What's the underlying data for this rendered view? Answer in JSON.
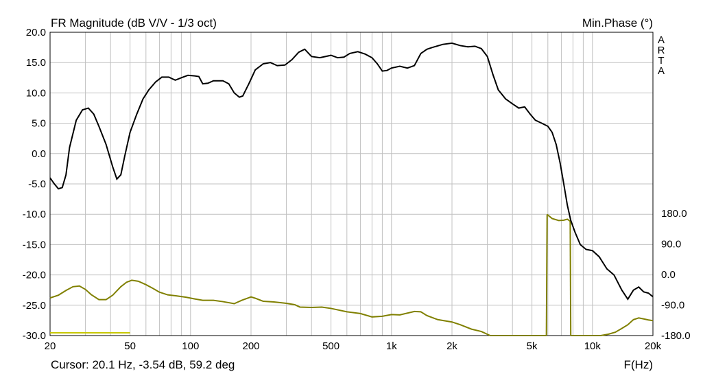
{
  "chart_data": {
    "type": "line",
    "title": "FR Magnitude (dB V/V - 1/3 oct)",
    "right_axis_title": "Min.Phase (°)",
    "watermark": "ARTA",
    "xlabel": "F(Hz)",
    "x_scale": "log",
    "xlim": [
      20,
      20000
    ],
    "ylim": [
      -30,
      20
    ],
    "y2lim": [
      -180,
      180
    ],
    "grid": true,
    "x_ticks": [
      {
        "v": 20,
        "label": "20"
      },
      {
        "v": 50,
        "label": "50"
      },
      {
        "v": 100,
        "label": "100"
      },
      {
        "v": 200,
        "label": "200"
      },
      {
        "v": 500,
        "label": "500"
      },
      {
        "v": 1000,
        "label": "1k"
      },
      {
        "v": 2000,
        "label": "2k"
      },
      {
        "v": 5000,
        "label": "5k"
      },
      {
        "v": 10000,
        "label": "10k"
      },
      {
        "v": 20000,
        "label": "20k"
      }
    ],
    "y_ticks": [
      {
        "v": 20,
        "label": "20.0"
      },
      {
        "v": 15,
        "label": "15.0"
      },
      {
        "v": 10,
        "label": "10.0"
      },
      {
        "v": 5,
        "label": "5.0"
      },
      {
        "v": 0,
        "label": "0.0"
      },
      {
        "v": -5,
        "label": "-5.0"
      },
      {
        "v": -10,
        "label": "-10.0"
      },
      {
        "v": -15,
        "label": "-15.0"
      },
      {
        "v": -20,
        "label": "-20.0"
      },
      {
        "v": -25,
        "label": "-25.0"
      },
      {
        "v": -30,
        "label": "-30.0"
      }
    ],
    "y2_ticks": [
      {
        "v": 180,
        "label": "180.0"
      },
      {
        "v": 90,
        "label": "90.0"
      },
      {
        "v": 0,
        "label": "0.0"
      },
      {
        "v": -90,
        "label": "-90.0"
      },
      {
        "v": -180,
        "label": "-180.0"
      }
    ],
    "colors": {
      "magnitude": "#000000",
      "phase": "#808000",
      "marker": "#c8c800",
      "grid": "#c0c0c0"
    },
    "magnitude": [
      [
        20,
        -4
      ],
      [
        21,
        -5
      ],
      [
        22,
        -5.8
      ],
      [
        23,
        -5.6
      ],
      [
        24,
        -3.5
      ],
      [
        25,
        1
      ],
      [
        27,
        5.5
      ],
      [
        29,
        7.2
      ],
      [
        31,
        7.5
      ],
      [
        33,
        6.5
      ],
      [
        35,
        4.5
      ],
      [
        38,
        1.5
      ],
      [
        41,
        -2.2
      ],
      [
        43,
        -4.2
      ],
      [
        45,
        -3.5
      ],
      [
        47,
        -0.5
      ],
      [
        50,
        3.5
      ],
      [
        54,
        6.5
      ],
      [
        58,
        9
      ],
      [
        62,
        10.5
      ],
      [
        67,
        11.8
      ],
      [
        72,
        12.6
      ],
      [
        78,
        12.6
      ],
      [
        84,
        12.1
      ],
      [
        90,
        12.5
      ],
      [
        97,
        12.9
      ],
      [
        105,
        12.8
      ],
      [
        110,
        12.7
      ],
      [
        115,
        11.5
      ],
      [
        122,
        11.6
      ],
      [
        130,
        12
      ],
      [
        145,
        12
      ],
      [
        155,
        11.5
      ],
      [
        165,
        10
      ],
      [
        175,
        9.3
      ],
      [
        182,
        9.5
      ],
      [
        195,
        11.5
      ],
      [
        210,
        13.8
      ],
      [
        230,
        14.8
      ],
      [
        250,
        15
      ],
      [
        270,
        14.5
      ],
      [
        295,
        14.6
      ],
      [
        320,
        15.5
      ],
      [
        345,
        16.7
      ],
      [
        370,
        17.2
      ],
      [
        400,
        16
      ],
      [
        440,
        15.8
      ],
      [
        500,
        16.2
      ],
      [
        540,
        15.8
      ],
      [
        580,
        15.9
      ],
      [
        620,
        16.5
      ],
      [
        680,
        16.8
      ],
      [
        740,
        16.4
      ],
      [
        800,
        15.8
      ],
      [
        850,
        14.8
      ],
      [
        900,
        13.6
      ],
      [
        950,
        13.7
      ],
      [
        1000,
        14.1
      ],
      [
        1100,
        14.4
      ],
      [
        1200,
        14.1
      ],
      [
        1300,
        14.5
      ],
      [
        1400,
        16.5
      ],
      [
        1500,
        17.2
      ],
      [
        1600,
        17.5
      ],
      [
        1800,
        18
      ],
      [
        2000,
        18.2
      ],
      [
        2200,
        17.8
      ],
      [
        2400,
        17.6
      ],
      [
        2600,
        17.7
      ],
      [
        2800,
        17.3
      ],
      [
        3000,
        16
      ],
      [
        3200,
        13
      ],
      [
        3400,
        10.5
      ],
      [
        3700,
        9
      ],
      [
        4000,
        8.2
      ],
      [
        4300,
        7.5
      ],
      [
        4600,
        7.7
      ],
      [
        4900,
        6.5
      ],
      [
        5200,
        5.5
      ],
      [
        5600,
        5
      ],
      [
        6000,
        4.5
      ],
      [
        6300,
        3.5
      ],
      [
        6600,
        1.5
      ],
      [
        6900,
        -1.5
      ],
      [
        7200,
        -5
      ],
      [
        7500,
        -8.5
      ],
      [
        7800,
        -11
      ],
      [
        8200,
        -13
      ],
      [
        8700,
        -15
      ],
      [
        9300,
        -15.8
      ],
      [
        10000,
        -16
      ],
      [
        10800,
        -17
      ],
      [
        11800,
        -19
      ],
      [
        12800,
        -20
      ],
      [
        14000,
        -22.5
      ],
      [
        15000,
        -24
      ],
      [
        16000,
        -22.5
      ],
      [
        17000,
        -22
      ],
      [
        18000,
        -22.8
      ],
      [
        19000,
        -23
      ],
      [
        20000,
        -23.6
      ]
    ],
    "phase": [
      [
        20,
        -69
      ],
      [
        22,
        -61
      ],
      [
        24,
        -47
      ],
      [
        26,
        -36
      ],
      [
        28,
        -34
      ],
      [
        30,
        -44
      ],
      [
        32,
        -59
      ],
      [
        35,
        -74
      ],
      [
        38,
        -74
      ],
      [
        41,
        -61
      ],
      [
        45,
        -36
      ],
      [
        48,
        -23
      ],
      [
        51,
        -17
      ],
      [
        55,
        -20
      ],
      [
        60,
        -30
      ],
      [
        65,
        -41
      ],
      [
        70,
        -52
      ],
      [
        77,
        -60
      ],
      [
        85,
        -63
      ],
      [
        95,
        -67
      ],
      [
        105,
        -72
      ],
      [
        115,
        -76
      ],
      [
        130,
        -76
      ],
      [
        145,
        -80
      ],
      [
        165,
        -86
      ],
      [
        180,
        -76
      ],
      [
        200,
        -66
      ],
      [
        210,
        -70
      ],
      [
        230,
        -79
      ],
      [
        260,
        -81
      ],
      [
        300,
        -85
      ],
      [
        330,
        -89
      ],
      [
        350,
        -96
      ],
      [
        400,
        -97
      ],
      [
        450,
        -96
      ],
      [
        500,
        -100
      ],
      [
        600,
        -110
      ],
      [
        700,
        -115
      ],
      [
        800,
        -125
      ],
      [
        900,
        -123
      ],
      [
        1000,
        -118
      ],
      [
        1100,
        -119
      ],
      [
        1300,
        -109
      ],
      [
        1400,
        -110
      ],
      [
        1500,
        -121
      ],
      [
        1700,
        -133
      ],
      [
        2000,
        -140
      ],
      [
        2200,
        -148
      ],
      [
        2500,
        -161
      ],
      [
        2800,
        -168
      ],
      [
        3100,
        -184
      ],
      [
        3400,
        -189
      ],
      [
        3800,
        -201
      ],
      [
        4200,
        -197
      ],
      [
        4600,
        -199
      ],
      [
        5000,
        -205
      ],
      [
        5500,
        -216
      ],
      [
        5900,
        -228
      ]
    ],
    "phase_wrap_segment": [
      [
        5950,
        177
      ],
      [
        6300,
        165
      ],
      [
        6800,
        159
      ],
      [
        7200,
        160
      ],
      [
        7500,
        163
      ],
      [
        7750,
        157
      ]
    ],
    "phase_tail": [
      [
        7800,
        -227
      ],
      [
        8300,
        -215
      ],
      [
        8800,
        -206
      ],
      [
        9500,
        -198
      ],
      [
        10200,
        -193
      ],
      [
        11000,
        -186
      ],
      [
        12000,
        -176
      ],
      [
        13000,
        -170
      ],
      [
        14000,
        -159
      ],
      [
        15000,
        -148
      ],
      [
        16000,
        -133
      ],
      [
        17000,
        -128
      ],
      [
        18000,
        -131
      ],
      [
        19000,
        -134
      ],
      [
        20000,
        -136
      ]
    ],
    "marker_range": [
      20,
      50
    ],
    "cursor_readout": "Cursor: 20.1 Hz, -3.54 dB, 59.2 deg"
  }
}
